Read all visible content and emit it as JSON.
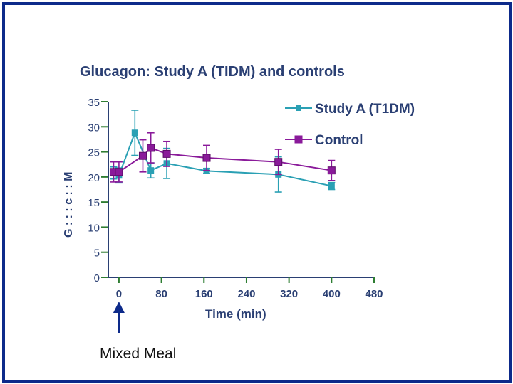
{
  "chart_data": {
    "type": "line",
    "title": "Glucagon: Study A (TIDM) and controls",
    "xlabel": "Time (min)",
    "ylabel": "G : : : c : : M",
    "xlim": [
      -20,
      480
    ],
    "ylim": [
      0,
      35
    ],
    "xticks": [
      0,
      80,
      160,
      240,
      320,
      400,
      480
    ],
    "yticks": [
      0,
      5,
      10,
      15,
      20,
      25,
      30,
      35
    ],
    "legend_position": "top-right",
    "annotation": "Mixed Meal",
    "series": [
      {
        "name": "Study A (T1DM)",
        "color": "#2aa0b4",
        "marker": "square",
        "x": [
          -10,
          0,
          30,
          60,
          90,
          165,
          300,
          400
        ],
        "y": [
          20.8,
          20.3,
          28.8,
          21.3,
          22.7,
          21.2,
          20.5,
          18.2
        ],
        "err": [
          1.2,
          1.5,
          4.5,
          1.5,
          3.0,
          0.5,
          3.5,
          0.7
        ]
      },
      {
        "name": "Control",
        "color": "#8a1a9a",
        "marker": "square",
        "x": [
          -10,
          0,
          45,
          60,
          90,
          165,
          300,
          400
        ],
        "y": [
          21.0,
          21.0,
          24.2,
          25.8,
          24.6,
          23.8,
          23.0,
          21.3
        ],
        "err": [
          2.0,
          2.0,
          3.2,
          3.0,
          2.5,
          2.5,
          2.5,
          2.0
        ]
      }
    ]
  }
}
